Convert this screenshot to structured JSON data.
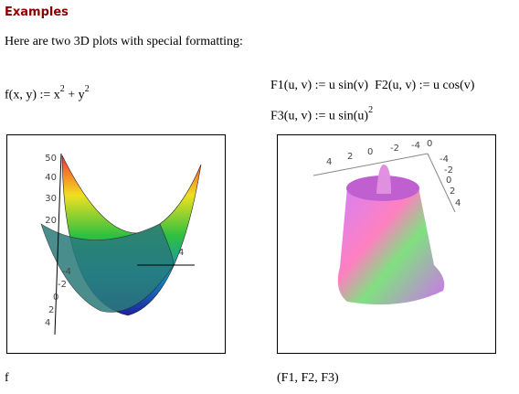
{
  "header": {
    "title": "Examples"
  },
  "intro": "Here are two 3D plots with special formatting:",
  "equations": {
    "f": {
      "lhs": "f(x, y) := x",
      "exp1": "2",
      "mid": "+ y",
      "exp2": "2"
    },
    "f1": "F1(u, v) := u sin(v)",
    "f2": "F2(u, v) := u cos(v)",
    "f3": {
      "lhs": "F3(u, v) := u sin(u)",
      "exp": "2"
    }
  },
  "plots": [
    {
      "caption": "f",
      "z_ticks": [
        "50",
        "40",
        "30",
        "20"
      ],
      "y_ticks": [
        "-4",
        "-2",
        "0",
        "2",
        "4"
      ],
      "x_ticks": [
        "4"
      ]
    },
    {
      "caption": "(F1, F2, F3)",
      "x_ticks": [
        "4",
        "2",
        "0",
        "-2",
        "-4",
        "0"
      ],
      "y_ticks": [
        "-4",
        "-2",
        "0",
        "2",
        "4"
      ]
    }
  ]
}
